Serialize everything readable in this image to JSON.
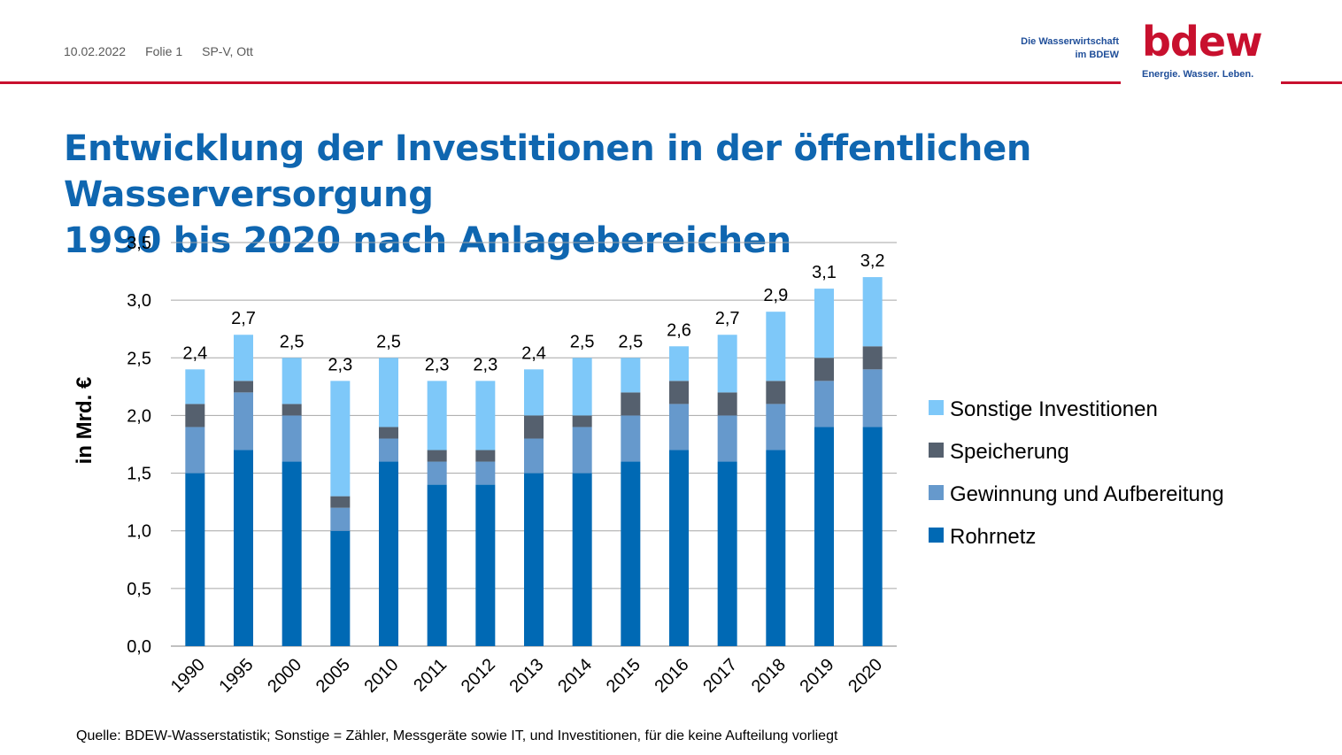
{
  "header": {
    "date": "10.02.2022",
    "slide": "Folie 1",
    "author": "SP-V, Ott"
  },
  "brand": {
    "tagline_line1": "Die Wasserwirtschaft",
    "tagline_line2": "im BDEW",
    "logo_text": "bdew",
    "logo_subtitle": "Energie. Wasser. Leben.",
    "colors": {
      "red": "#c8102e",
      "blue": "#1f4e99"
    }
  },
  "title_line1": "Entwicklung der Investitionen in der öffentlichen Wasserversorgung",
  "title_line2": "1990 bis 2020 nach Anlagebereichen",
  "source": "Quelle: BDEW-Wasserstatistik; Sonstige = Zähler, Messgeräte sowie IT, und Investitionen, für die keine Aufteilung vorliegt",
  "chart_data": {
    "type": "bar",
    "stacked": true,
    "title": "",
    "xlabel": "",
    "ylabel": "in Mrd. €",
    "ylim": [
      0,
      3.5
    ],
    "yticks": [
      "0,0",
      "0,5",
      "1,0",
      "1,5",
      "2,0",
      "2,5",
      "3,0",
      "3,5"
    ],
    "grid": true,
    "legend_position": "right",
    "categories": [
      "1990",
      "1995",
      "2000",
      "2005",
      "2010",
      "2011",
      "2012",
      "2013",
      "2014",
      "2015",
      "2016",
      "2017",
      "2018",
      "2019",
      "2020"
    ],
    "totals": [
      "2,4",
      "2,7",
      "2,5",
      "2,3",
      "2,5",
      "2,3",
      "2,3",
      "2,4",
      "2,5",
      "2,5",
      "2,6",
      "2,7",
      "2,9",
      "3,1",
      "3,2"
    ],
    "series": [
      {
        "name": "Rohrnetz",
        "color": "#0069b4",
        "values": [
          1.5,
          1.7,
          1.6,
          1.0,
          1.6,
          1.4,
          1.4,
          1.5,
          1.5,
          1.6,
          1.7,
          1.6,
          1.7,
          1.9,
          1.9
        ]
      },
      {
        "name": "Gewinnung und Aufbereitung",
        "color": "#6699cc",
        "values": [
          0.4,
          0.5,
          0.4,
          0.2,
          0.2,
          0.2,
          0.2,
          0.3,
          0.4,
          0.4,
          0.4,
          0.4,
          0.4,
          0.4,
          0.5
        ]
      },
      {
        "name": "Speicherung",
        "color": "#55606e",
        "values": [
          0.2,
          0.1,
          0.1,
          0.1,
          0.1,
          0.1,
          0.1,
          0.2,
          0.1,
          0.2,
          0.2,
          0.2,
          0.2,
          0.2,
          0.2
        ]
      },
      {
        "name": "Sonstige Investitionen",
        "color": "#7ec8f9",
        "values": [
          0.3,
          0.4,
          0.4,
          1.0,
          0.6,
          0.6,
          0.6,
          0.4,
          0.5,
          0.3,
          0.3,
          0.5,
          0.6,
          0.6,
          0.6
        ]
      }
    ],
    "legend_order": [
      "Sonstige Investitionen",
      "Speicherung",
      "Gewinnung und Aufbereitung",
      "Rohrnetz"
    ]
  }
}
